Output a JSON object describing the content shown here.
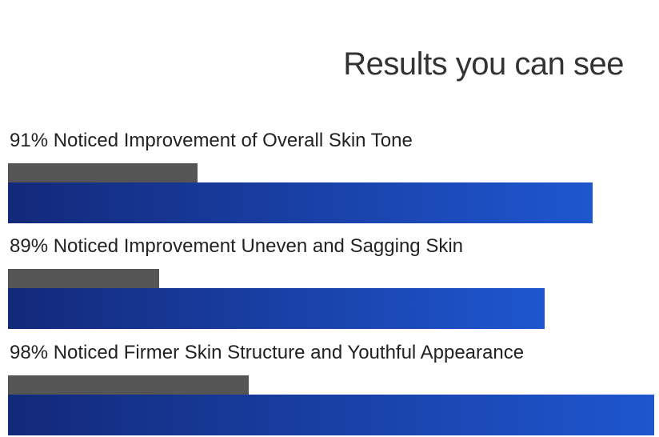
{
  "chart_data": {
    "type": "bar",
    "orientation": "horizontal",
    "title": "Results you can see",
    "colors": {
      "primary": "#1e56cf",
      "primary_dark": "#13297a",
      "secondary": "#555555"
    },
    "rows": [
      {
        "label": "91% Noticed Improvement of Overall Skin Tone",
        "percent": 91,
        "blue_fill": 0.905,
        "gray_fill": 0.293
      },
      {
        "label": "89% Noticed Improvement  Uneven and Sagging Skin",
        "percent": 89,
        "blue_fill": 0.83,
        "gray_fill": 0.234
      },
      {
        "label": "98% Noticed Firmer Skin Structure and Youthful Appearance",
        "percent": 98,
        "blue_fill": 1.0,
        "gray_fill": 0.373
      }
    ]
  }
}
